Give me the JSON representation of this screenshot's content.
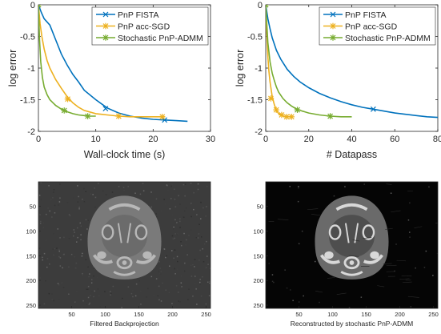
{
  "chart_data": [
    {
      "type": "line",
      "xlabel": "Wall-clock time (s)",
      "ylabel": "log error",
      "xlim": [
        0,
        30
      ],
      "ylim": [
        -2,
        0
      ],
      "xticks": [
        0,
        10,
        20,
        30
      ],
      "yticks": [
        0,
        -0.5,
        -1,
        -1.5,
        -2
      ],
      "xtick_labels": [
        "0",
        "10",
        "20",
        "30"
      ],
      "ytick_labels": [
        "0",
        "-0.5",
        "-1",
        "-1.5",
        "-2"
      ],
      "grid": false,
      "legend_position": "top-right",
      "series": [
        {
          "name": "PnP FISTA",
          "color": "#0072bd",
          "marker": "x",
          "x": [
            0,
            0.5,
            1,
            2,
            3,
            4,
            5,
            6,
            7,
            8,
            10,
            12,
            14,
            16,
            18,
            20,
            22,
            24,
            26
          ],
          "y": [
            0,
            -0.12,
            -0.22,
            -0.32,
            -0.55,
            -0.78,
            -0.95,
            -1.1,
            -1.22,
            -1.35,
            -1.5,
            -1.63,
            -1.71,
            -1.76,
            -1.79,
            -1.81,
            -1.82,
            -1.83,
            -1.84
          ],
          "marker_x": [
            0,
            11.7,
            22
          ],
          "marker_y": [
            0,
            -1.64,
            -1.82
          ]
        },
        {
          "name": "PnP acc-SGD",
          "color": "#edb120",
          "marker": "*",
          "x": [
            0,
            0.3,
            0.6,
            1,
            1.5,
            2,
            3,
            4,
            5,
            6,
            7,
            8,
            10,
            12,
            14,
            16,
            18,
            20,
            22
          ],
          "y": [
            0,
            -0.3,
            -0.5,
            -0.7,
            -0.88,
            -1.0,
            -1.18,
            -1.32,
            -1.45,
            -1.55,
            -1.62,
            -1.67,
            -1.72,
            -1.74,
            -1.76,
            -1.77,
            -1.77,
            -1.77,
            -1.77
          ],
          "marker_x": [
            0,
            5.1,
            14,
            21.6
          ],
          "marker_y": [
            0,
            -1.49,
            -1.76,
            -1.77
          ]
        },
        {
          "name": "Stochastic PnP-ADMM",
          "color": "#77ac30",
          "marker": "*",
          "x": [
            0,
            0.2,
            0.4,
            0.7,
            1,
            1.5,
            2,
            3,
            4,
            5,
            6,
            7,
            8,
            9,
            10
          ],
          "y": [
            0,
            -0.55,
            -0.9,
            -1.15,
            -1.3,
            -1.42,
            -1.5,
            -1.59,
            -1.65,
            -1.69,
            -1.72,
            -1.74,
            -1.75,
            -1.76,
            -1.76
          ],
          "marker_x": [
            0,
            4.5,
            8.6
          ],
          "marker_y": [
            0,
            -1.67,
            -1.76
          ]
        }
      ]
    },
    {
      "type": "line",
      "xlabel": "# Datapass",
      "ylabel": "log error",
      "xlim": [
        0,
        80
      ],
      "ylim": [
        -2,
        0
      ],
      "xticks": [
        0,
        20,
        40,
        60,
        80
      ],
      "yticks": [
        0,
        -0.5,
        -1,
        -1.5,
        -2
      ],
      "xtick_labels": [
        "0",
        "20",
        "40",
        "60",
        "80"
      ],
      "ytick_labels": [
        "0",
        "-0.5",
        "-1",
        "-1.5",
        "-2"
      ],
      "grid": false,
      "legend_position": "top-right",
      "series": [
        {
          "name": "PnP FISTA",
          "color": "#0072bd",
          "marker": "x",
          "x": [
            0,
            1,
            2,
            3,
            5,
            7,
            10,
            13,
            16,
            20,
            25,
            30,
            35,
            40,
            45,
            50,
            55,
            60,
            65,
            70,
            75,
            80
          ],
          "y": [
            0,
            -0.22,
            -0.38,
            -0.52,
            -0.72,
            -0.86,
            -1.02,
            -1.13,
            -1.22,
            -1.31,
            -1.4,
            -1.47,
            -1.53,
            -1.58,
            -1.62,
            -1.65,
            -1.68,
            -1.71,
            -1.73,
            -1.75,
            -1.77,
            -1.78
          ],
          "marker_x": [
            0,
            50
          ],
          "marker_y": [
            0,
            -1.65
          ]
        },
        {
          "name": "PnP acc-SGD",
          "color": "#edb120",
          "marker": "*",
          "x": [
            0,
            0.5,
            1,
            1.5,
            2,
            3,
            4,
            5,
            6,
            7,
            8,
            9,
            10,
            11,
            12
          ],
          "y": [
            0,
            -0.45,
            -0.82,
            -1.05,
            -1.22,
            -1.45,
            -1.58,
            -1.67,
            -1.72,
            -1.74,
            -1.76,
            -1.77,
            -1.77,
            -1.77,
            -1.77
          ],
          "marker_x": [
            0,
            2.4,
            4.9,
            7.4,
            9.7,
            12
          ],
          "marker_y": [
            0,
            -1.48,
            -1.66,
            -1.74,
            -1.77,
            -1.77
          ]
        },
        {
          "name": "Stochastic PnP-ADMM",
          "color": "#77ac30",
          "marker": "*",
          "x": [
            0,
            1,
            2,
            3,
            4,
            5,
            6,
            8,
            10,
            12,
            14,
            17,
            20,
            25,
            30,
            35,
            40
          ],
          "y": [
            0,
            -0.6,
            -0.9,
            -1.08,
            -1.2,
            -1.3,
            -1.38,
            -1.48,
            -1.55,
            -1.6,
            -1.64,
            -1.68,
            -1.71,
            -1.74,
            -1.76,
            -1.77,
            -1.77
          ],
          "marker_x": [
            0,
            14.7,
            30
          ],
          "marker_y": [
            0,
            -1.66,
            -1.76
          ]
        }
      ]
    },
    {
      "type": "heatmap",
      "caption": "Filtered Backprojection",
      "xticks": [
        50,
        100,
        150,
        200,
        250
      ],
      "yticks": [
        50,
        100,
        150,
        200,
        250
      ],
      "xtick_labels": [
        "50",
        "100",
        "150",
        "200",
        "250"
      ],
      "ytick_labels": [
        "50",
        "100",
        "150",
        "200",
        "250"
      ],
      "xlim": [
        0.5,
        256.5
      ],
      "ylim": [
        0.5,
        256.5
      ],
      "background": "#3c3c3c",
      "noise_level": 0.45
    },
    {
      "type": "heatmap",
      "caption": "Reconstructed by stochastic PnP-ADMM",
      "xticks": [
        50,
        100,
        150,
        200,
        250
      ],
      "yticks": [
        50,
        100,
        150,
        200,
        250
      ],
      "xtick_labels": [
        "50",
        "100",
        "150",
        "200",
        "250"
      ],
      "ytick_labels": [
        "50",
        "100",
        "150",
        "200",
        "250"
      ],
      "xlim": [
        0.5,
        256.5
      ],
      "ylim": [
        0.5,
        256.5
      ],
      "background": "#050505",
      "noise_level": 0.05
    }
  ]
}
